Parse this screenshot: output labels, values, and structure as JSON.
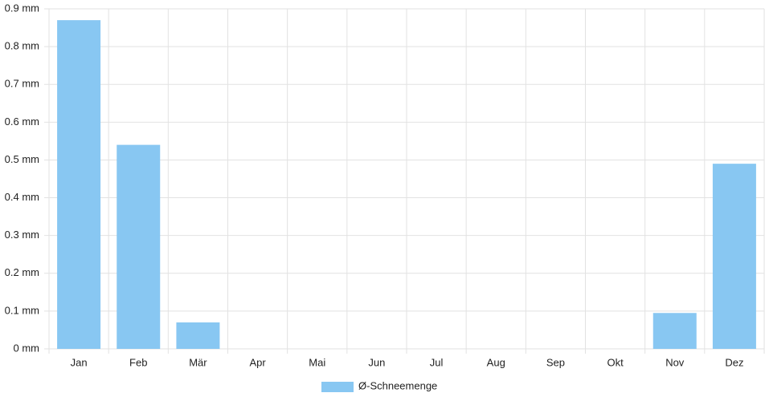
{
  "chart_data": {
    "type": "bar",
    "categories": [
      "Jan",
      "Feb",
      "Mär",
      "Apr",
      "Mai",
      "Jun",
      "Jul",
      "Aug",
      "Sep",
      "Okt",
      "Nov",
      "Dez"
    ],
    "series": [
      {
        "name": "Ø-Schneemenge",
        "color": "#88c7f2",
        "values": [
          0.87,
          0.54,
          0.07,
          0,
          0,
          0,
          0,
          0,
          0,
          0,
          0.095,
          0.49
        ]
      }
    ],
    "ylim": [
      0,
      0.9
    ],
    "yticks": [
      {
        "value": 0,
        "label": "0 mm"
      },
      {
        "value": 0.1,
        "label": "0.1 mm"
      },
      {
        "value": 0.2,
        "label": "0.2 mm"
      },
      {
        "value": 0.3,
        "label": "0.3 mm"
      },
      {
        "value": 0.4,
        "label": "0.4 mm"
      },
      {
        "value": 0.5,
        "label": "0.5 mm"
      },
      {
        "value": 0.6,
        "label": "0.6 mm"
      },
      {
        "value": 0.7,
        "label": "0.7 mm"
      },
      {
        "value": 0.8,
        "label": "0.8 mm"
      },
      {
        "value": 0.9,
        "label": "0.9 mm"
      }
    ],
    "grid": true,
    "legend": "bottom"
  }
}
